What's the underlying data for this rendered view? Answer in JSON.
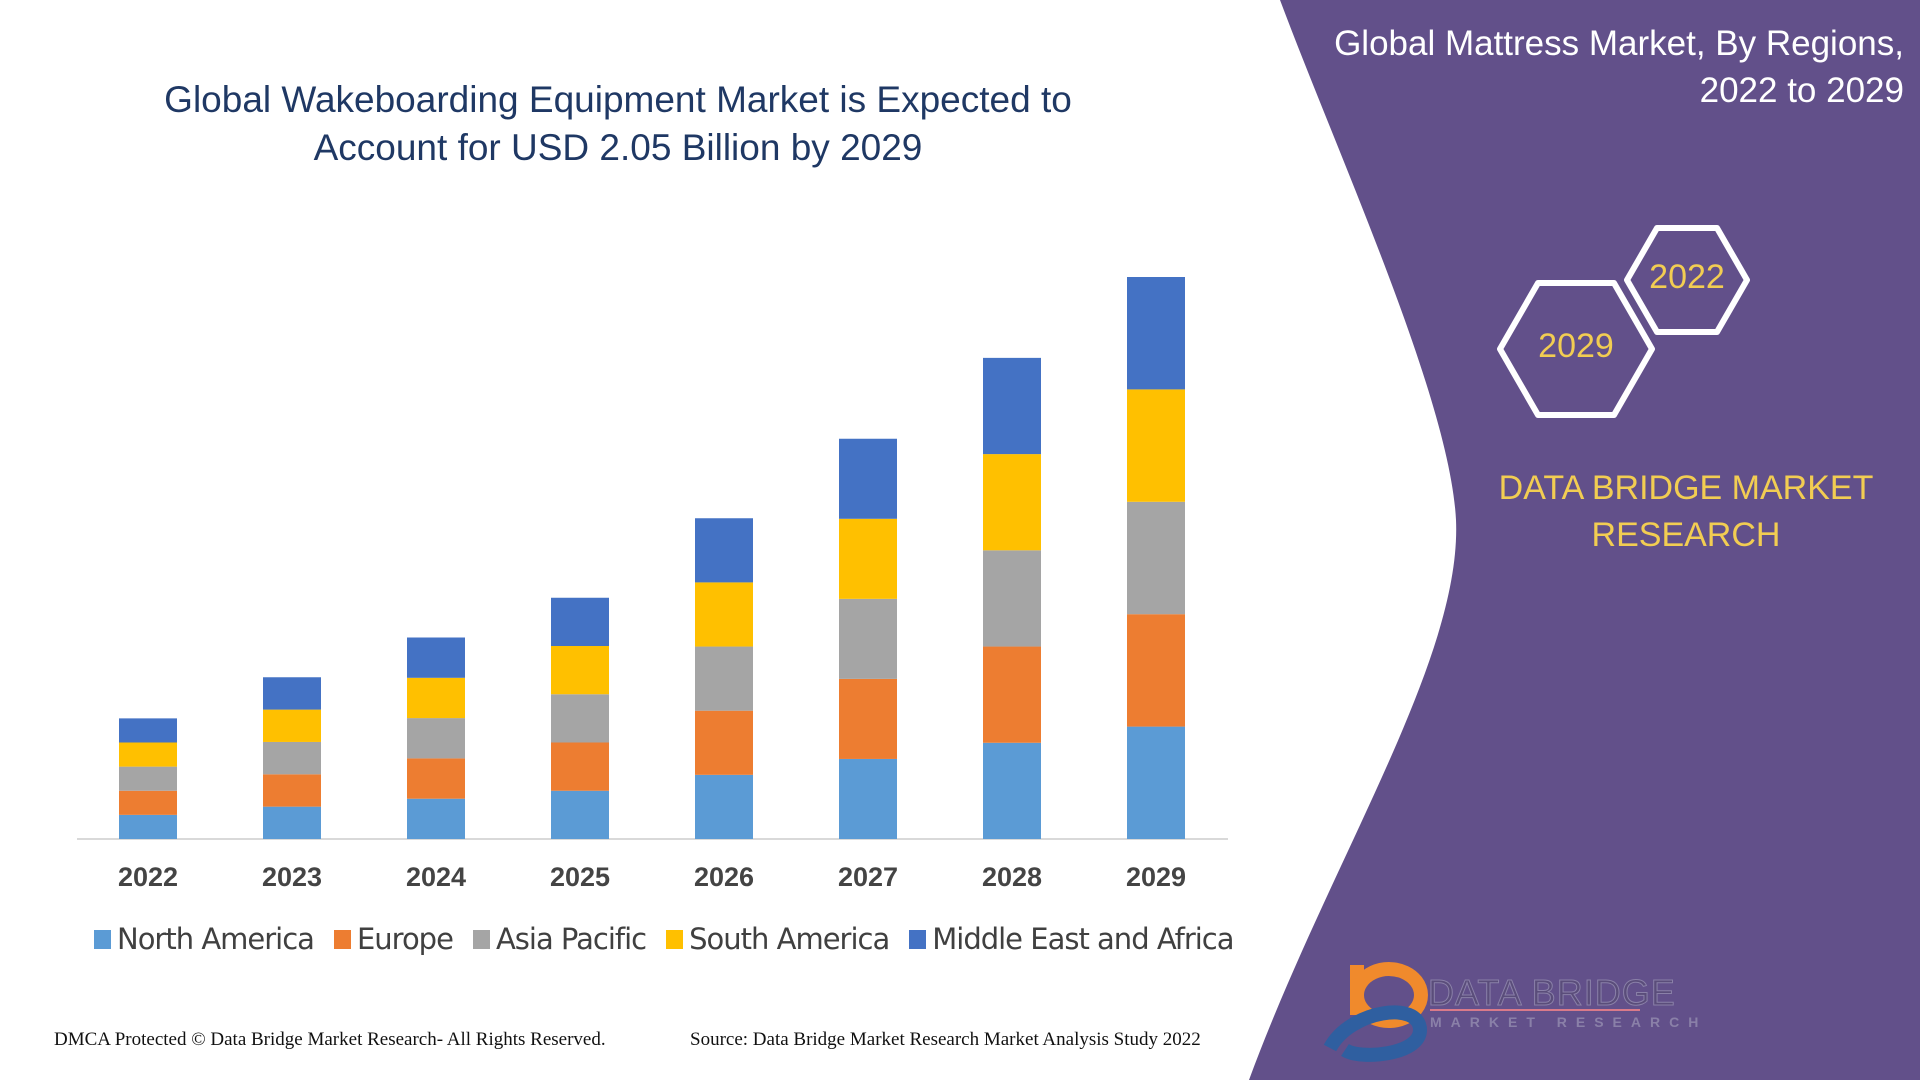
{
  "title_lines": [
    "Global Wakeboarding Equipment Market is Expected to",
    "Account for USD 2.05 Billion by 2029"
  ],
  "right_panel": {
    "title_lines": [
      "Global Mattress Market,  By Regions,",
      "2022 to 2029"
    ],
    "hex_start": "2022",
    "hex_end": "2029",
    "brand_lines": [
      "DATA BRIDGE MARKET",
      "RESEARCH"
    ],
    "logo_text": "DATA BRIDGE",
    "logo_subtext": "MARKET RESEARCH",
    "panel_color": "#62508a",
    "accent_color": "#f2cd52"
  },
  "footer": {
    "left": "DMCA Protected © Data Bridge Market Research- All Rights Reserved.",
    "right": "Source: Data Bridge Market Research Market Analysis Study 2022"
  },
  "chart_data": {
    "type": "bar",
    "stacked": true,
    "title": "Global Wakeboarding Equipment Market is Expected to Account for USD 2.05 Billion by 2029",
    "categories": [
      "2022",
      "2023",
      "2024",
      "2025",
      "2026",
      "2027",
      "2028",
      "2029"
    ],
    "ylim": [
      0,
      2.05
    ],
    "grid": false,
    "legend_position": "bottom",
    "series": [
      {
        "name": "North America",
        "color": "#5b9bd5",
        "values": [
          0.088,
          0.118,
          0.147,
          0.176,
          0.234,
          0.292,
          0.351,
          0.41
        ]
      },
      {
        "name": "Europe",
        "color": "#ed7d31",
        "values": [
          0.088,
          0.118,
          0.147,
          0.176,
          0.234,
          0.292,
          0.351,
          0.41
        ]
      },
      {
        "name": "Asia Pacific",
        "color": "#a5a5a5",
        "values": [
          0.088,
          0.118,
          0.147,
          0.176,
          0.234,
          0.292,
          0.351,
          0.41
        ]
      },
      {
        "name": "South America",
        "color": "#ffc000",
        "values": [
          0.088,
          0.118,
          0.147,
          0.176,
          0.234,
          0.292,
          0.351,
          0.41
        ]
      },
      {
        "name": "Middle East and Africa",
        "color": "#4472c4",
        "values": [
          0.088,
          0.118,
          0.147,
          0.176,
          0.234,
          0.292,
          0.351,
          0.41
        ]
      }
    ]
  }
}
